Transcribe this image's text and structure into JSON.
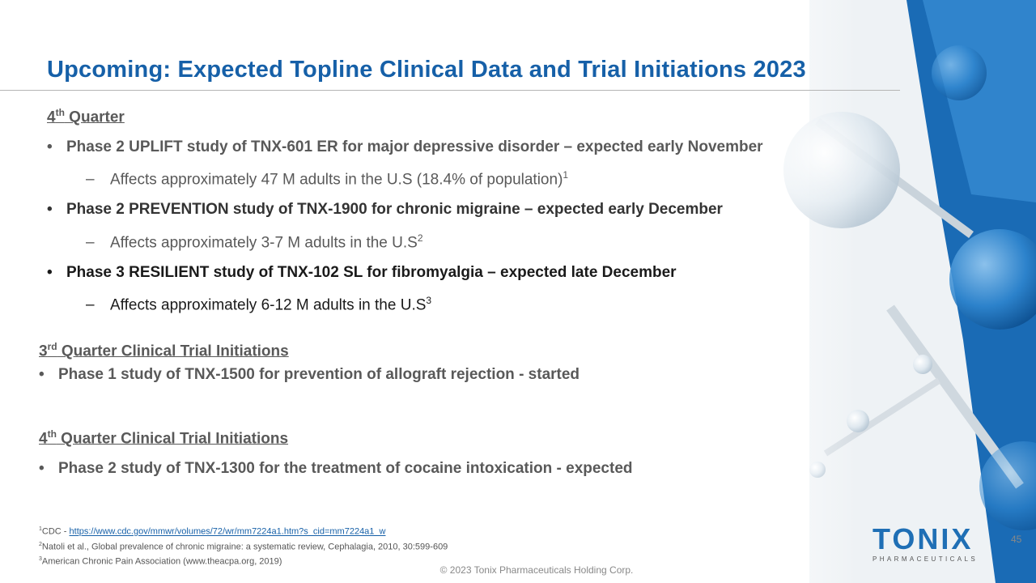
{
  "title": "Upcoming: Expected Topline Clinical Data and Trial Initiations 2023",
  "q4_heading": {
    "pre": "4",
    "sup": "th",
    "post": " Quarter"
  },
  "q4_items": [
    {
      "text": "Phase 2 UPLIFT study of TNX-601 ER for major depressive disorder – expected early November",
      "sub": {
        "text": "Affects approximately 47 M adults in the U.S (18.4% of population)",
        "ref": "1"
      }
    },
    {
      "text": "Phase 2 PREVENTION  study of TNX-1900 for chronic migraine – expected early December",
      "sub": {
        "text": "Affects approximately 3-7 M adults in the U.S",
        "ref": "2"
      }
    },
    {
      "text": "Phase 3 RESILIENT  study of TNX-102 SL for fibromyalgia – expected late December",
      "sub": {
        "text": "Affects approximately 6-12 M adults in the U.S",
        "ref": "3"
      }
    }
  ],
  "q3_init_heading": {
    "pre": "3",
    "sup": "rd",
    "post": " Quarter Clinical  Trial Initiations"
  },
  "q3_init_item": "Phase 1 study of TNX-1500 for prevention of allograft rejection - started",
  "q4_init_heading": {
    "pre": "4",
    "sup": "th",
    "post": " Quarter Clinical  Trial Initiations"
  },
  "q4_init_item": "Phase 2 study of TNX-1300 for the treatment of cocaine intoxication - expected",
  "footnotes": [
    {
      "num": "1",
      "prefix": "CDC - ",
      "link": "https://www.cdc.gov/mmwr/volumes/72/wr/mm7224a1.htm?s_cid=mm7224a1_w"
    },
    {
      "num": "2",
      "text": "Natoli et al., Global prevalence of chronic migraine: a systematic review, Cephalagia, 2010, 30:599-609"
    },
    {
      "num": "3",
      "text": "American Chronic Pain Association (www.theacpa.org, 2019)"
    }
  ],
  "copyright": "© 2023 Tonix Pharmaceuticals Holding Corp.",
  "page_number": "45",
  "logo": {
    "word": "TONIX",
    "sub": "PHARMACEUTICALS"
  },
  "colors": {
    "title_blue": "#1660a8",
    "text_gray": "#595959",
    "accent_blue": "#1f6fb5"
  },
  "bullet_glyph": "•",
  "dash_glyph": "–"
}
